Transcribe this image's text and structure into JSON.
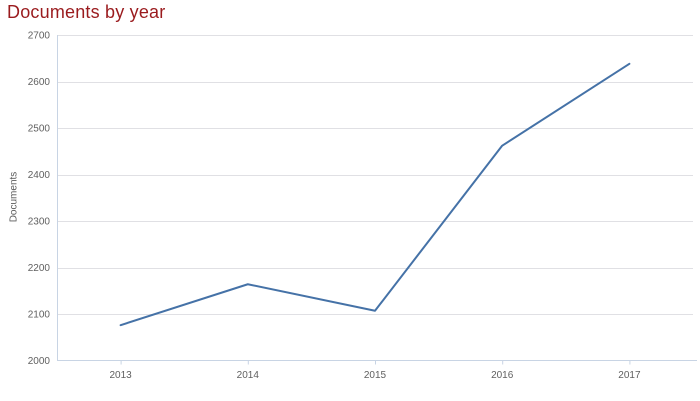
{
  "page": {
    "title": "Documents by year"
  },
  "colors": {
    "title": "#9a1b1e",
    "series_line": "#4572a7",
    "gridline": "#e0e0e4",
    "axis_line": "#c8d4e4",
    "tick_label": "#606060",
    "y_axis_title": "#5a5a5a",
    "background": "#ffffff"
  },
  "chart_data": {
    "type": "line",
    "title": "Documents by year",
    "xlabel": "",
    "ylabel": "Documents",
    "categories": [
      "2013",
      "2014",
      "2015",
      "2016",
      "2017"
    ],
    "series": [
      {
        "name": "Documents",
        "values": [
          2076,
          2164,
          2107,
          2462,
          2638
        ]
      }
    ],
    "ylim": [
      2000,
      2700
    ],
    "ytick_step": 100,
    "ytick_labels": [
      "2000",
      "2100",
      "2200",
      "2300",
      "2400",
      "2500",
      "2600",
      "2700"
    ],
    "grid": true,
    "legend": false
  }
}
